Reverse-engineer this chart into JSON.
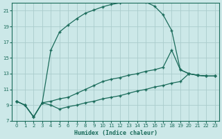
{
  "xlabel": "Humidex (Indice chaleur)",
  "bg_color": "#cce8e8",
  "grid_color": "#aacccc",
  "line_color": "#1a6b5a",
  "xlim": [
    -0.5,
    23.5
  ],
  "ylim": [
    7,
    22
  ],
  "yticks": [
    7,
    9,
    11,
    13,
    15,
    17,
    19,
    21
  ],
  "xticks": [
    0,
    1,
    2,
    3,
    4,
    5,
    6,
    7,
    8,
    9,
    10,
    11,
    12,
    13,
    14,
    15,
    16,
    17,
    18,
    19,
    20,
    21,
    22,
    23
  ],
  "curve1_x": [
    0,
    1,
    2,
    3,
    4,
    5,
    6,
    7,
    8,
    9,
    10,
    11,
    12,
    13,
    14,
    15,
    16,
    17,
    18,
    19,
    20,
    21,
    22,
    23
  ],
  "curve1_y": [
    9.5,
    9.0,
    7.5,
    9.3,
    16.0,
    18.3,
    19.2,
    20.0,
    20.7,
    21.1,
    21.5,
    21.8,
    22.0,
    22.2,
    22.3,
    22.1,
    21.6,
    20.5,
    18.5,
    13.5,
    13.0,
    12.8,
    12.7,
    12.7
  ],
  "curve2_x": [
    0,
    1,
    2,
    3,
    4,
    5,
    6,
    7,
    8,
    9,
    10,
    11,
    12,
    13,
    14,
    15,
    16,
    17,
    18,
    19,
    20,
    21,
    22,
    23
  ],
  "curve2_y": [
    9.5,
    9.0,
    7.5,
    9.3,
    9.5,
    9.8,
    10.0,
    10.5,
    11.0,
    11.5,
    12.0,
    12.3,
    12.5,
    12.8,
    13.0,
    13.3,
    13.5,
    13.8,
    16.0,
    13.5,
    13.0,
    12.8,
    12.7,
    12.7
  ],
  "curve3_x": [
    0,
    1,
    2,
    3,
    4,
    5,
    6,
    7,
    8,
    9,
    10,
    11,
    12,
    13,
    14,
    15,
    16,
    17,
    18,
    19,
    20,
    21,
    22,
    23
  ],
  "curve3_y": [
    9.5,
    9.0,
    7.5,
    9.3,
    9.0,
    8.5,
    8.8,
    9.0,
    9.3,
    9.5,
    9.8,
    10.0,
    10.2,
    10.5,
    10.8,
    11.0,
    11.3,
    11.5,
    11.8,
    12.0,
    13.0,
    12.8,
    12.7,
    12.7
  ]
}
